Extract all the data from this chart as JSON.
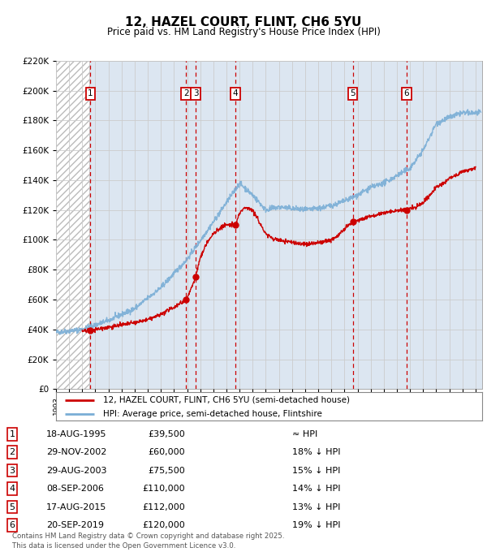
{
  "title": "12, HAZEL COURT, FLINT, CH6 5YU",
  "subtitle": "Price paid vs. HM Land Registry's House Price Index (HPI)",
  "ylim": [
    0,
    220000
  ],
  "yticks": [
    0,
    20000,
    40000,
    60000,
    80000,
    100000,
    120000,
    140000,
    160000,
    180000,
    200000,
    220000
  ],
  "xlim_start": 1993.0,
  "xlim_end": 2025.5,
  "background_hatch_end": 1995.55,
  "sale_dates_decimal": [
    1995.63,
    2002.91,
    2003.66,
    2006.69,
    2015.63,
    2019.72
  ],
  "sale_prices": [
    39500,
    60000,
    75500,
    110000,
    112000,
    120000
  ],
  "sale_labels": [
    "1",
    "2",
    "3",
    "4",
    "5",
    "6"
  ],
  "sale_info": [
    {
      "label": "1",
      "date": "18-AUG-1995",
      "price": "£39,500",
      "vs_hpi": "≈ HPI"
    },
    {
      "label": "2",
      "date": "29-NOV-2002",
      "price": "£60,000",
      "vs_hpi": "18% ↓ HPI"
    },
    {
      "label": "3",
      "date": "29-AUG-2003",
      "price": "£75,500",
      "vs_hpi": "15% ↓ HPI"
    },
    {
      "label": "4",
      "date": "08-SEP-2006",
      "price": "£110,000",
      "vs_hpi": "14% ↓ HPI"
    },
    {
      "label": "5",
      "date": "17-AUG-2015",
      "price": "£112,000",
      "vs_hpi": "13% ↓ HPI"
    },
    {
      "label": "6",
      "date": "20-SEP-2019",
      "price": "£120,000",
      "vs_hpi": "19% ↓ HPI"
    }
  ],
  "legend_line1": "12, HAZEL COURT, FLINT, CH6 5YU (semi-detached house)",
  "legend_line2": "HPI: Average price, semi-detached house, Flintshire",
  "footer": "Contains HM Land Registry data © Crown copyright and database right 2025.\nThis data is licensed under the Open Government Licence v3.0.",
  "property_line_color": "#cc0000",
  "hpi_line_color": "#7aaed6",
  "sale_marker_color": "#cc0000",
  "sale_vline_color": "#cc0000",
  "box_edge_color": "#cc0000",
  "grid_color": "#cccccc",
  "background_color": "#dce6f1",
  "hatch_color": "#bbbbbb"
}
